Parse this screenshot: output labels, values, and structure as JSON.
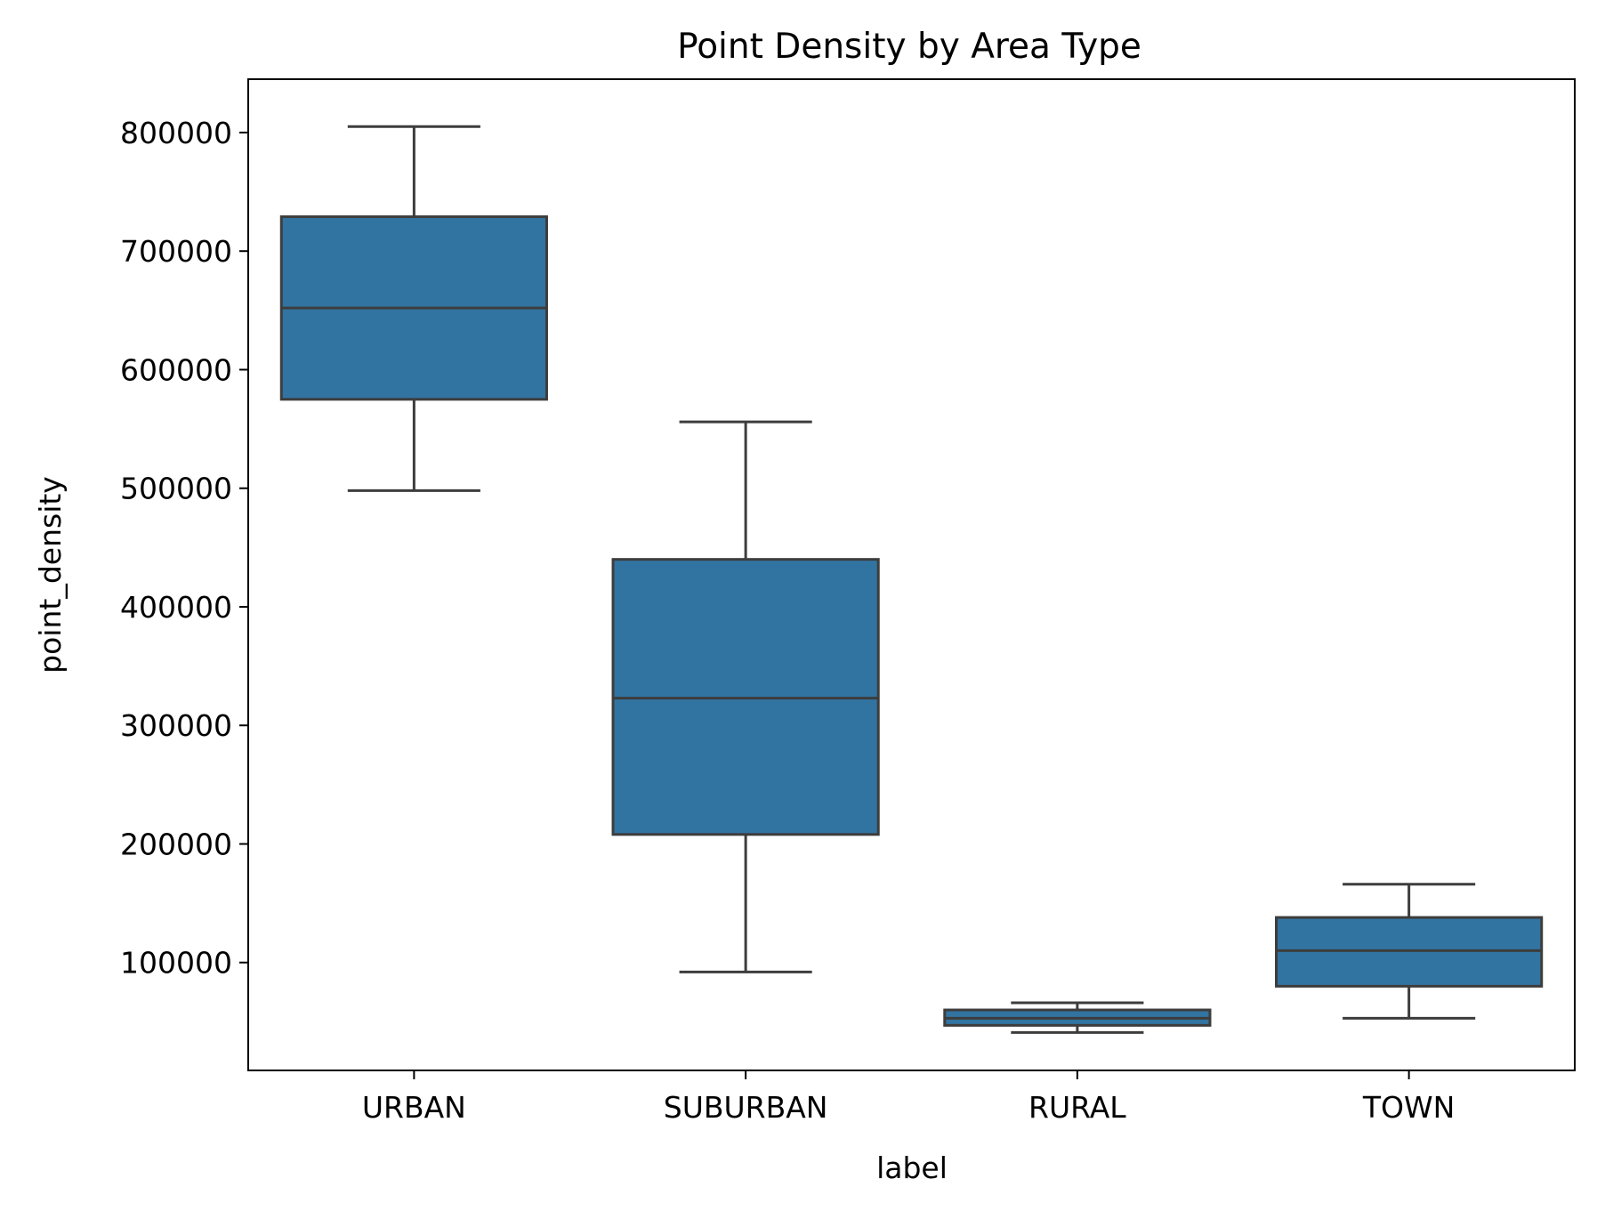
{
  "chart_data": {
    "type": "box",
    "title": "Point Density by Area Type",
    "xlabel": "label",
    "ylabel": "point_density",
    "categories": [
      "URBAN",
      "SUBURBAN",
      "RURAL",
      "TOWN"
    ],
    "boxes": [
      {
        "label": "URBAN",
        "whisker_low": 498000,
        "q1": 575000,
        "median": 652000,
        "q3": 729000,
        "whisker_high": 805000
      },
      {
        "label": "SUBURBAN",
        "whisker_low": 92000,
        "q1": 208000,
        "median": 323000,
        "q3": 440000,
        "whisker_high": 556000
      },
      {
        "label": "RURAL",
        "whisker_low": 41000,
        "q1": 47000,
        "median": 53000,
        "q3": 60000,
        "whisker_high": 66000
      },
      {
        "label": "TOWN",
        "whisker_low": 53000,
        "q1": 80000,
        "median": 110000,
        "q3": 138000,
        "whisker_high": 166000
      }
    ],
    "yticks": [
      100000,
      200000,
      300000,
      400000,
      500000,
      600000,
      700000,
      800000
    ],
    "ytick_labels": [
      "100000",
      "200000",
      "300000",
      "400000",
      "500000",
      "600000",
      "700000",
      "800000"
    ],
    "ylim": [
      9000,
      845000
    ],
    "grid": false,
    "legend": "none",
    "box_color": "#3274a1",
    "line_color": "#3d3d3d"
  }
}
